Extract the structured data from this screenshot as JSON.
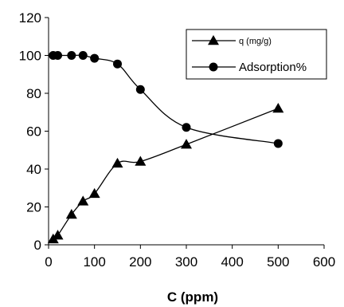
{
  "chart_data": {
    "type": "line",
    "title": "",
    "xlabel": "C (ppm)",
    "ylabel": "",
    "xlim": [
      0,
      600
    ],
    "ylim": [
      0,
      120
    ],
    "x_ticks": [
      0,
      100,
      200,
      300,
      400,
      500,
      600
    ],
    "y_ticks": [
      0,
      20,
      40,
      60,
      80,
      100,
      120
    ],
    "grid": false,
    "legend_position": "top-right",
    "series": [
      {
        "name": "q (mg/g)",
        "marker": "triangle",
        "x": [
          10,
          20,
          50,
          75,
          100,
          150,
          200,
          300,
          500
        ],
        "y": [
          3,
          5,
          16,
          23,
          27,
          43,
          44,
          53,
          72
        ]
      },
      {
        "name": "Adsorption%",
        "marker": "circle",
        "x": [
          10,
          20,
          50,
          75,
          100,
          150,
          200,
          300,
          500
        ],
        "y": [
          100,
          100,
          100,
          100,
          98.5,
          95.5,
          82,
          62,
          53.5
        ]
      }
    ]
  }
}
